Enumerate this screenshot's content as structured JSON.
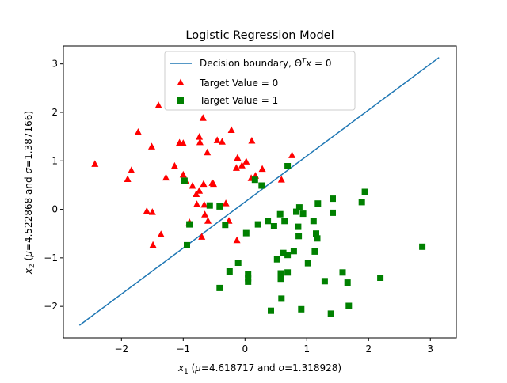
{
  "chart_data": {
    "type": "scatter",
    "title": "Logistic Regression Model",
    "xlabel_parts": {
      "var": "x",
      "sub": "1",
      "pre": " (",
      "mu_sym": "μ",
      "mu_val": "=4.618717 and ",
      "sigma_sym": "σ",
      "sigma_val": "=1.318928)"
    },
    "ylabel_parts": {
      "var": "x",
      "sub": "2",
      "pre": " (",
      "mu_sym": "μ",
      "mu_val": "=4.522868 and ",
      "sigma_sym": "σ",
      "sigma_val": "=1.387166)"
    },
    "xlim": [
      -2.94,
      3.42
    ],
    "ylim": [
      -2.65,
      3.37
    ],
    "xticks": [
      -2,
      -1,
      0,
      1,
      2,
      3
    ],
    "yticks": [
      -2,
      -1,
      0,
      1,
      2,
      3
    ],
    "xtick_labels": [
      "−2",
      "−1",
      "0",
      "1",
      "2",
      "3"
    ],
    "ytick_labels": [
      "−2",
      "−1",
      "0",
      "1",
      "2",
      "3"
    ],
    "grid": false,
    "legend_placement": "top-center",
    "legend": {
      "boundary_prefix": "Decision boundary, ",
      "boundary_theta": "Θ",
      "boundary_sup": "T",
      "boundary_x": "x",
      "boundary_eq": " = 0",
      "class0": "Target Value = 0",
      "class1": "Target Value = 1"
    },
    "colors": {
      "boundary": "#1f77b4",
      "class0": "#ff0000",
      "class1": "#008000"
    },
    "series": [
      {
        "name": "Decision boundary, ΘTx = 0",
        "kind": "line",
        "points": [
          [
            -2.68,
            -2.39
          ],
          [
            3.14,
            3.13
          ]
        ]
      },
      {
        "name": "Target Value = 0",
        "kind": "scatter",
        "marker": "triangle",
        "points": [
          [
            -2.43,
            0.94
          ],
          [
            -1.9,
            0.63
          ],
          [
            -1.84,
            0.81
          ],
          [
            -1.73,
            1.6
          ],
          [
            -1.59,
            -0.03
          ],
          [
            -1.51,
            1.3
          ],
          [
            -1.5,
            -0.05
          ],
          [
            -1.49,
            -0.73
          ],
          [
            -1.4,
            2.15
          ],
          [
            -1.36,
            -0.51
          ],
          [
            -1.28,
            0.66
          ],
          [
            -1.14,
            0.9
          ],
          [
            -1.06,
            1.38
          ],
          [
            -1.0,
            1.37
          ],
          [
            -1.0,
            0.72
          ],
          [
            -0.96,
            0.59
          ],
          [
            -0.9,
            -0.26
          ],
          [
            -0.85,
            0.49
          ],
          [
            -0.79,
            0.32
          ],
          [
            -0.78,
            0.11
          ],
          [
            -0.74,
            0.39
          ],
          [
            -0.74,
            1.5
          ],
          [
            -0.73,
            1.39
          ],
          [
            -0.7,
            -0.56
          ],
          [
            -0.68,
            1.89
          ],
          [
            -0.67,
            0.53
          ],
          [
            -0.66,
            0.1
          ],
          [
            -0.65,
            -0.1
          ],
          [
            -0.61,
            1.18
          ],
          [
            -0.6,
            -0.23
          ],
          [
            -0.53,
            0.55
          ],
          [
            -0.51,
            0.53
          ],
          [
            -0.45,
            1.43
          ],
          [
            -0.37,
            1.4
          ],
          [
            -0.31,
            0.13
          ],
          [
            -0.26,
            -0.23
          ],
          [
            -0.22,
            1.64
          ],
          [
            -0.14,
            0.86
          ],
          [
            -0.13,
            -0.63
          ],
          [
            -0.12,
            1.07
          ],
          [
            -0.05,
            0.91
          ],
          [
            0.02,
            0.99
          ],
          [
            0.1,
            0.65
          ],
          [
            0.11,
            1.42
          ],
          [
            0.17,
            0.7
          ],
          [
            0.28,
            0.84
          ],
          [
            0.59,
            0.62
          ],
          [
            0.76,
            1.12
          ]
        ]
      },
      {
        "name": "Target Value = 1",
        "kind": "scatter",
        "marker": "square",
        "points": [
          [
            -0.98,
            0.59
          ],
          [
            -0.94,
            -0.74
          ],
          [
            -0.9,
            -0.31
          ],
          [
            -0.57,
            0.08
          ],
          [
            -0.41,
            0.06
          ],
          [
            -0.41,
            -1.62
          ],
          [
            -0.32,
            -0.32
          ],
          [
            -0.25,
            -1.28
          ],
          [
            -0.11,
            -1.1
          ],
          [
            0.02,
            -0.49
          ],
          [
            0.05,
            -1.34
          ],
          [
            0.05,
            -1.42
          ],
          [
            0.05,
            -1.49
          ],
          [
            0.16,
            0.61
          ],
          [
            0.21,
            -0.31
          ],
          [
            0.27,
            0.49
          ],
          [
            0.37,
            -0.24
          ],
          [
            0.42,
            -2.09
          ],
          [
            0.47,
            -0.35
          ],
          [
            0.52,
            -1.03
          ],
          [
            0.57,
            -0.1
          ],
          [
            0.58,
            -1.32
          ],
          [
            0.58,
            -1.43
          ],
          [
            0.59,
            -1.84
          ],
          [
            0.62,
            -0.9
          ],
          [
            0.64,
            -0.24
          ],
          [
            0.69,
            0.89
          ],
          [
            0.69,
            -0.94
          ],
          [
            0.69,
            -1.3
          ],
          [
            0.79,
            -0.86
          ],
          [
            0.83,
            -0.05
          ],
          [
            0.86,
            -0.36
          ],
          [
            0.87,
            -0.55
          ],
          [
            0.88,
            0.04
          ],
          [
            0.91,
            -2.06
          ],
          [
            0.94,
            -0.09
          ],
          [
            1.02,
            -1.11
          ],
          [
            1.11,
            -0.24
          ],
          [
            1.13,
            -0.87
          ],
          [
            1.15,
            -0.5
          ],
          [
            1.17,
            -0.6
          ],
          [
            1.18,
            0.12
          ],
          [
            1.29,
            -1.48
          ],
          [
            1.39,
            -2.15
          ],
          [
            1.42,
            0.22
          ],
          [
            1.42,
            -0.07
          ],
          [
            1.58,
            -1.3
          ],
          [
            1.66,
            -1.51
          ],
          [
            1.68,
            -1.99
          ],
          [
            1.89,
            0.15
          ],
          [
            1.94,
            0.36
          ],
          [
            2.19,
            -1.41
          ],
          [
            2.87,
            -0.77
          ]
        ]
      }
    ]
  }
}
